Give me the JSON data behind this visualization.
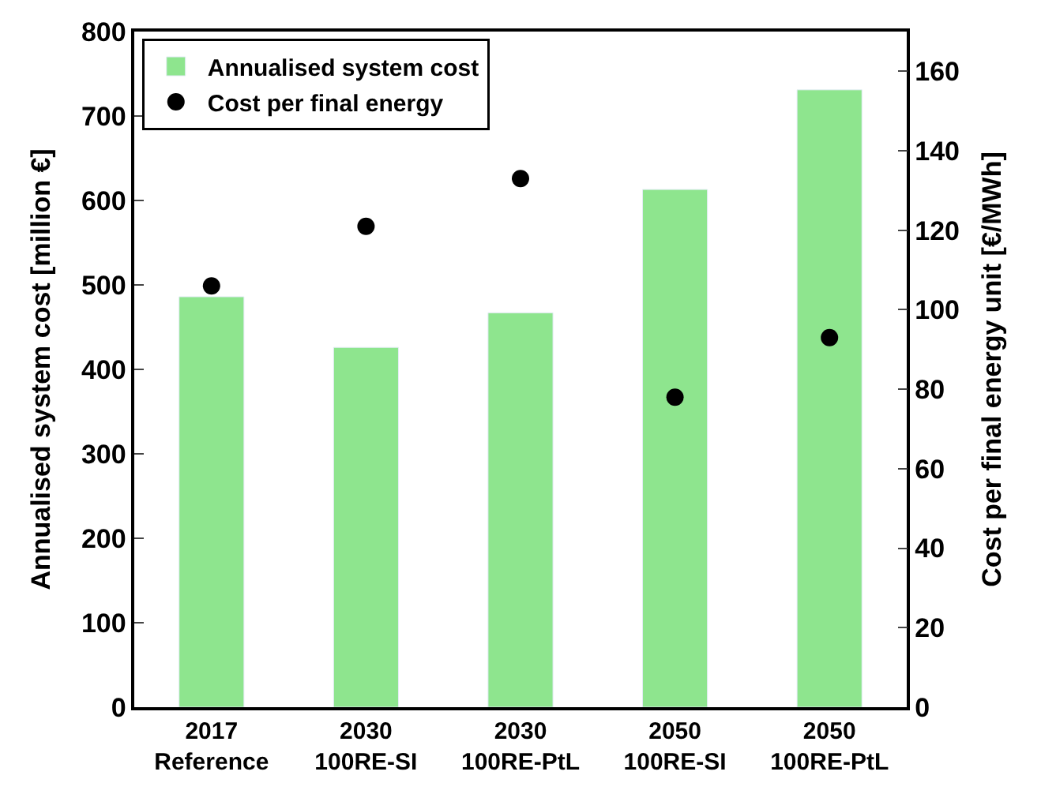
{
  "chart_data": {
    "type": "bar",
    "ylabel": "Annualised system cost [million €]",
    "y2label": "Cost per final energy unit [€/MWh]",
    "categories": [
      "2017\nReference",
      "2030\n100RE-SI",
      "2030\n100RE-PtL",
      "2050\n100RE-SI",
      "2050\n100RE-PtL"
    ],
    "series": [
      {
        "name": "Annualised system cost",
        "color": "#8ee58e",
        "values": [
          486,
          426,
          467,
          613,
          731
        ]
      },
      {
        "name": "Cost per final energy",
        "type": "scatter",
        "axis": "y2",
        "color": "#000000",
        "marker": "circle",
        "values": [
          106,
          121,
          133,
          78,
          93
        ]
      }
    ],
    "ylim": [
      0,
      800
    ],
    "yticks": [
      0,
      100,
      200,
      300,
      400,
      500,
      600,
      700,
      800
    ],
    "y2lim": [
      0,
      170
    ],
    "y2ticks": [
      0,
      20,
      40,
      60,
      80,
      100,
      120,
      140,
      160
    ],
    "legend": "top left"
  }
}
